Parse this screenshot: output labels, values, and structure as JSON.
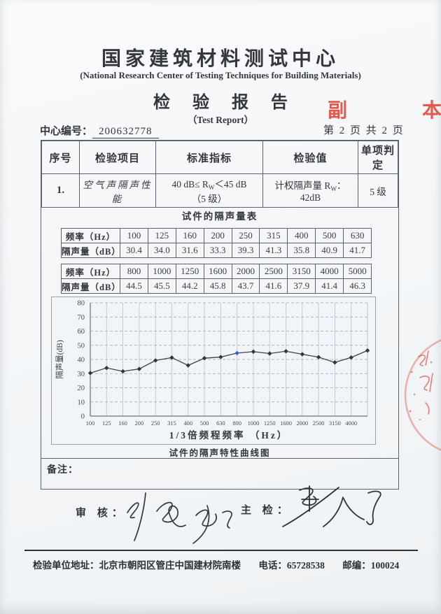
{
  "header": {
    "title_cn": "国家建筑材料测试中心",
    "title_en": "(National Research Center of Testing Techniques for Building Materials)",
    "report_title_cn": "检 验 报 告",
    "report_title_en": "（Test Report）",
    "copy_stamp": "副 本",
    "center_no_label": "中心编号：",
    "center_no_value": "200632778",
    "page_info": "第 2 页 共 2 页"
  },
  "main_table": {
    "headers": [
      "序号",
      "检验项目",
      "标准指标",
      "检验值",
      "单项判定"
    ],
    "row": {
      "seq": "1.",
      "item": "空气声隔声性能",
      "standard_part1": "40 dB≤  R",
      "standard_sub": "W",
      "standard_part2": "＜45 dB",
      "standard_line2": "（5 级）",
      "value_part1": "计权隔声量 R",
      "value_sub": "W",
      "value_part2": "： 42dB",
      "verdict": "5 级"
    }
  },
  "insulation": {
    "caption": "试件的隔声量表",
    "freq_label": "频率（Hz）",
    "db_label": "隔声量（dB）",
    "table1": {
      "freq": [
        "100",
        "125",
        "160",
        "200",
        "250",
        "315",
        "400",
        "500",
        "630"
      ],
      "db": [
        "30.4",
        "34.0",
        "31.6",
        "33.3",
        "39.3",
        "41.3",
        "35.8",
        "40.9",
        "41.7"
      ]
    },
    "table2": {
      "freq": [
        "800",
        "1000",
        "1250",
        "1600",
        "2000",
        "2500",
        "3150",
        "4000",
        "5000"
      ],
      "db": [
        "44.5",
        "45.5",
        "44.2",
        "45.8",
        "43.7",
        "41.6",
        "37.9",
        "41.4",
        "46.3"
      ]
    }
  },
  "chart_data": {
    "type": "line",
    "categories": [
      "100",
      "125",
      "160",
      "200",
      "250",
      "315",
      "400",
      "500",
      "630",
      "800",
      "1000",
      "1250",
      "1600",
      "2000",
      "2500",
      "3150",
      "4000",
      "5000"
    ],
    "x_tick_labels": [
      "100",
      "125",
      "160",
      "200",
      "250",
      "315",
      "400",
      "500",
      "630",
      "800",
      "1000",
      "1250",
      "1600",
      "2000",
      "2500",
      "3150",
      "4000"
    ],
    "values": [
      30.4,
      34.0,
      31.6,
      33.3,
      39.3,
      41.3,
      35.8,
      40.9,
      41.7,
      44.5,
      45.5,
      44.2,
      45.8,
      43.7,
      41.6,
      37.9,
      41.4,
      46.3
    ],
    "ylim": [
      0,
      80
    ],
    "ytick_step": 10,
    "ylabel": "隔声量(dB)",
    "xlabel": "1/3倍频程频率 （Hz）",
    "caption": "试件的隔声特性曲线图",
    "legend": "none",
    "grid": {
      "horizontal": "dashed",
      "vertical": "solid"
    },
    "line_color": "#3f4347",
    "marker": "diamond",
    "marker_color": "#33363a",
    "highlight_index": 9,
    "highlight_color": "#3b5bd6"
  },
  "remarks_label": "备注：",
  "signatures": {
    "review_label": "审  核：",
    "chief_label": "主  检："
  },
  "footer": {
    "address_label": "检验单位地址：",
    "address": "北京市朝阳区管庄中国建材院南楼",
    "phone_label": "电话：",
    "phone": "65728538",
    "zip_label": "邮编：",
    "zip": "100024"
  }
}
